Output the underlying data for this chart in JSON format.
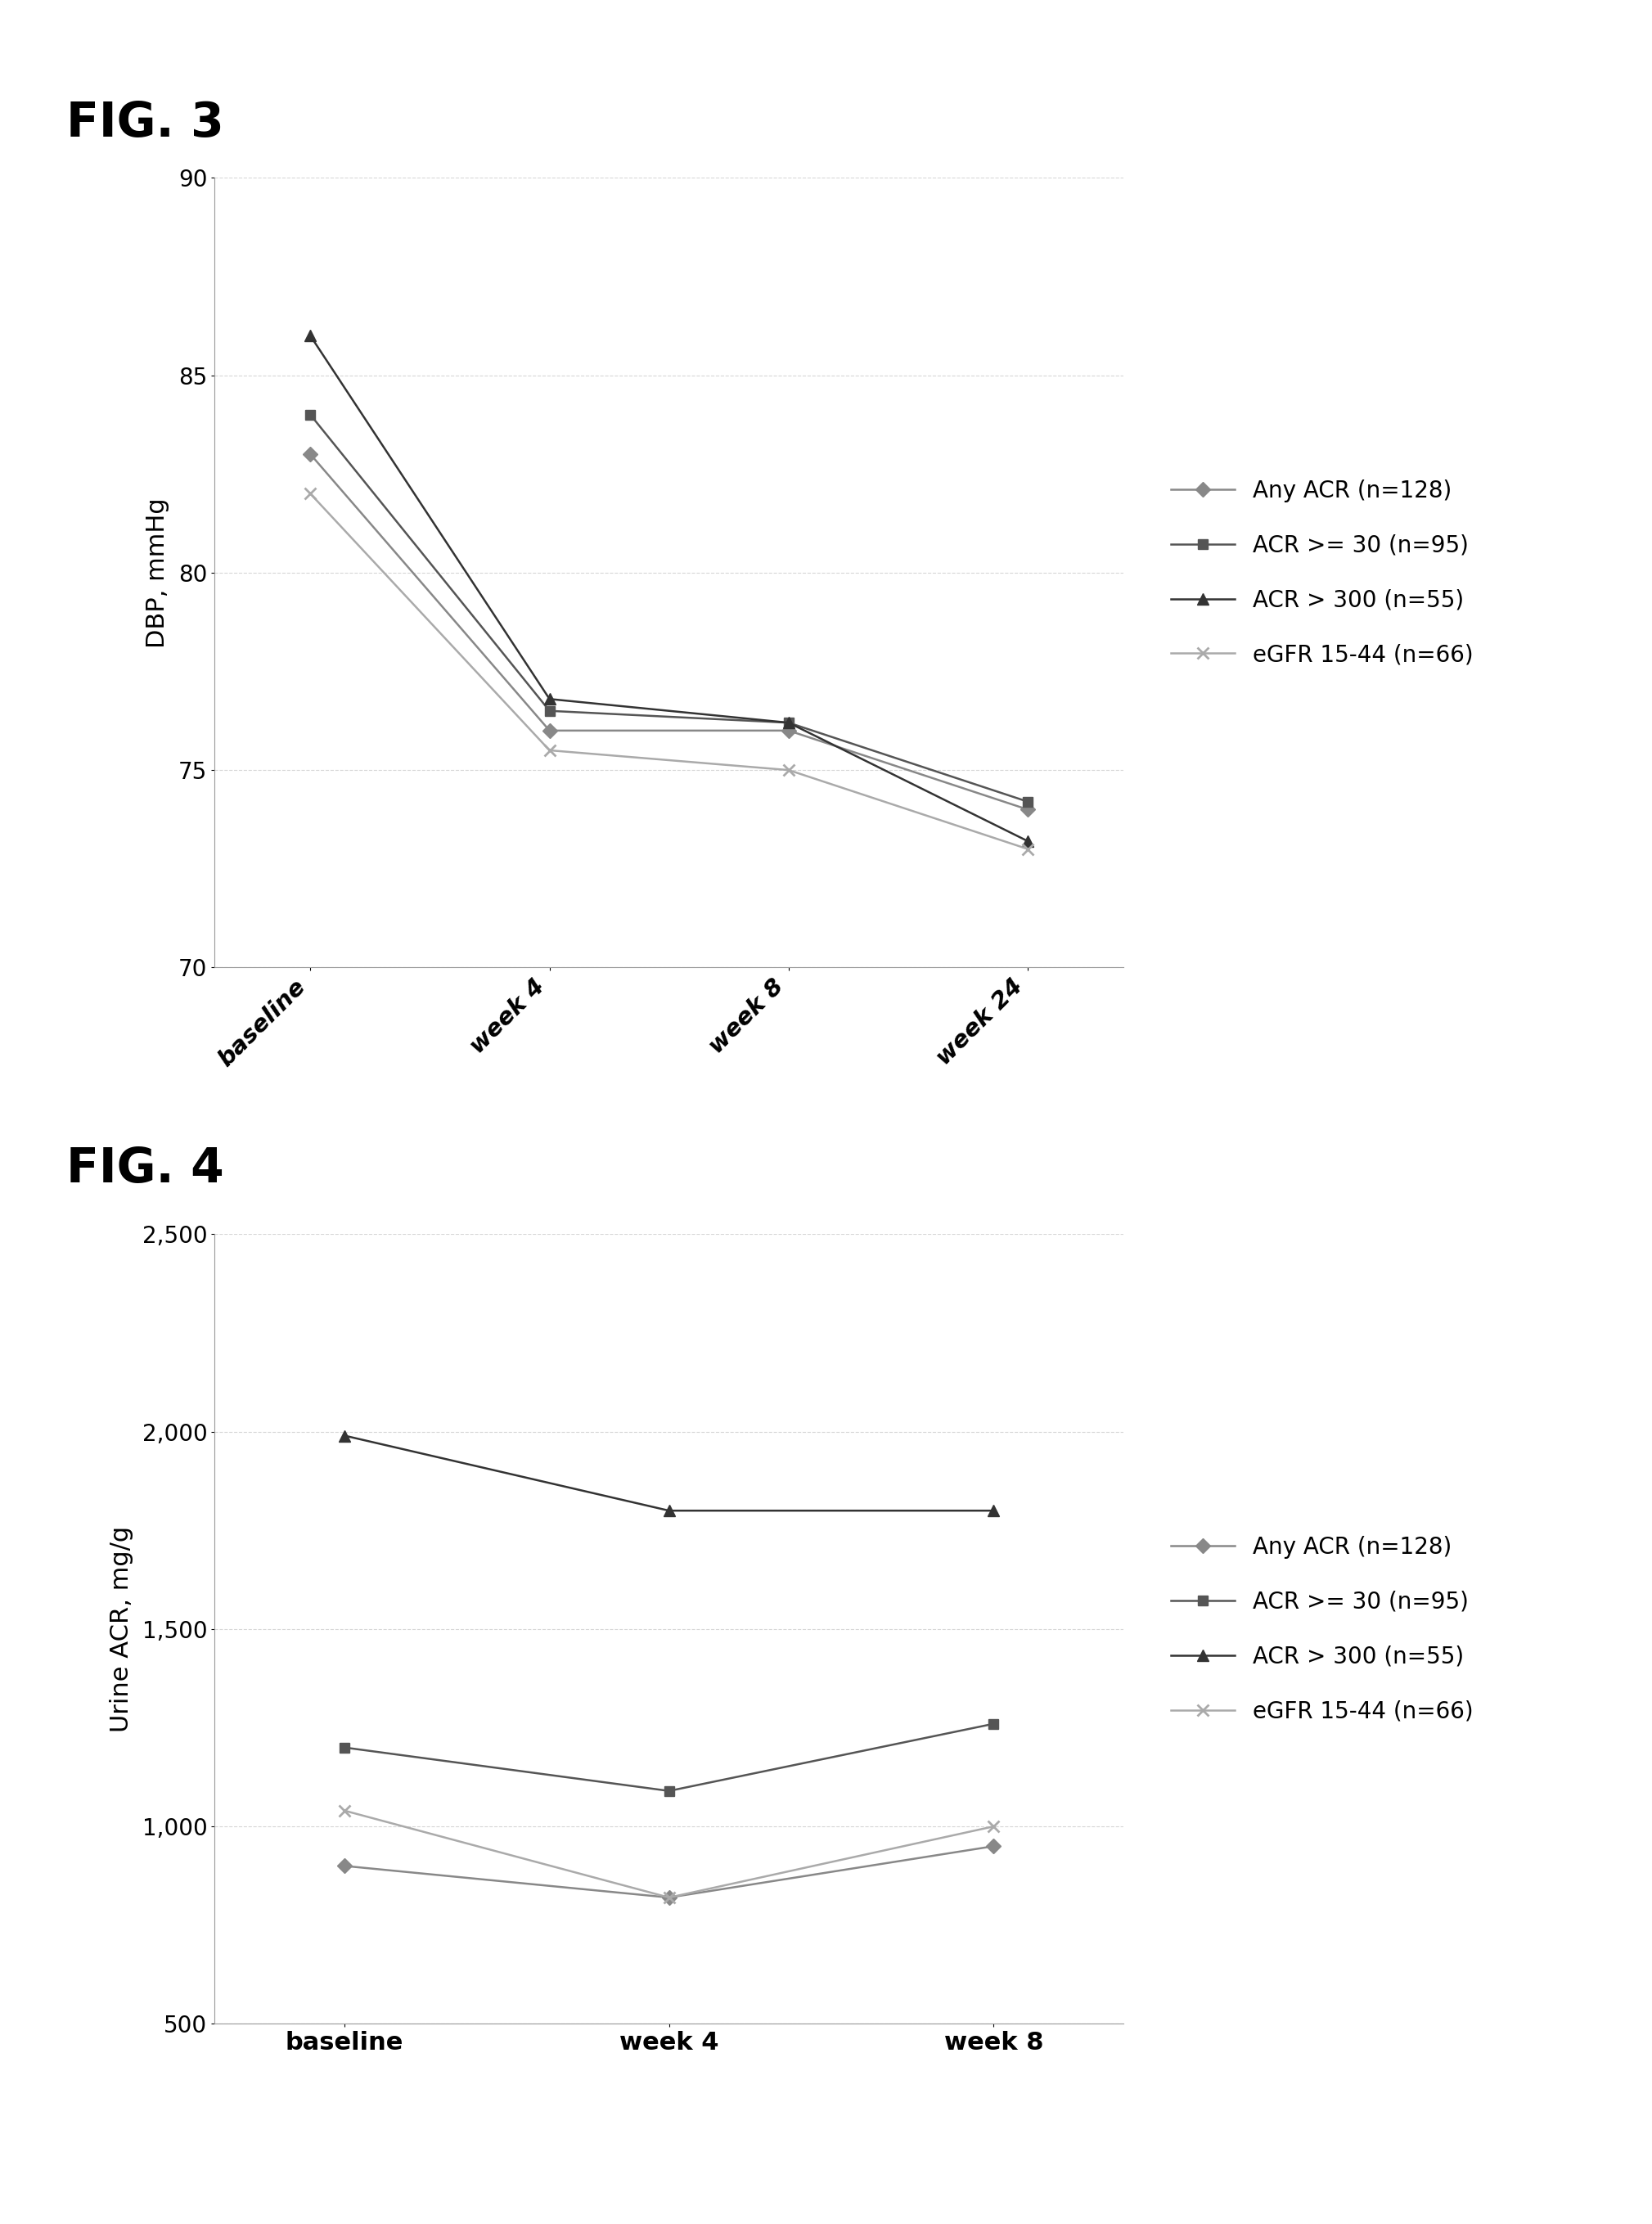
{
  "fig3": {
    "title": "FIG. 3",
    "ylabel": "DBP, mmHg",
    "xlabels": [
      "baseline",
      "week 4",
      "week 8",
      "week 24"
    ],
    "ylim": [
      70,
      90
    ],
    "yticks": [
      70,
      75,
      80,
      85,
      90
    ],
    "series": [
      {
        "label": "Any ACR (n=128)",
        "values": [
          83.0,
          76.0,
          76.0,
          74.0
        ],
        "color": "#888888",
        "marker": "D",
        "markersize": 9
      },
      {
        "label": "ACR >= 30 (n=95)",
        "values": [
          84.0,
          76.5,
          76.2,
          74.2
        ],
        "color": "#555555",
        "marker": "s",
        "markersize": 9
      },
      {
        "label": "ACR > 300 (n=55)",
        "values": [
          86.0,
          76.8,
          76.2,
          73.2
        ],
        "color": "#333333",
        "marker": "^",
        "markersize": 10
      },
      {
        "label": "eGFR 15-44 (n=66)",
        "values": [
          82.0,
          75.5,
          75.0,
          73.0
        ],
        "color": "#aaaaaa",
        "marker": "x",
        "markersize": 10,
        "markeredgewidth": 2
      }
    ]
  },
  "fig4": {
    "title": "FIG. 4",
    "ylabel": "Urine ACR, mg/g",
    "xlabels": [
      "baseline",
      "week 4",
      "week 8"
    ],
    "ylim": [
      500,
      2500
    ],
    "yticks": [
      500,
      1000,
      1500,
      2000,
      2500
    ],
    "ytick_labels": [
      "500",
      "1,000",
      "1,500",
      "2,000",
      "2,500"
    ],
    "series": [
      {
        "label": "Any ACR (n=128)",
        "values": [
          900,
          820,
          950
        ],
        "color": "#888888",
        "marker": "D",
        "markersize": 9
      },
      {
        "label": "ACR >= 30 (n=95)",
        "values": [
          1200,
          1090,
          1260
        ],
        "color": "#555555",
        "marker": "s",
        "markersize": 9
      },
      {
        "label": "ACR > 300 (n=55)",
        "values": [
          1990,
          1800,
          1800
        ],
        "color": "#333333",
        "marker": "^",
        "markersize": 10
      },
      {
        "label": "eGFR 15-44 (n=66)",
        "values": [
          1040,
          820,
          1000
        ],
        "color": "#aaaaaa",
        "marker": "x",
        "markersize": 10,
        "markeredgewidth": 2
      }
    ]
  },
  "background_color": "#ffffff",
  "grid_color": "#bbbbbb",
  "grid_style": "--",
  "grid_alpha": 0.6,
  "line_width": 1.8,
  "fig_title_fontsize": 42,
  "axis_label_fontsize": 22,
  "tick_label_fontsize": 20,
  "legend_fontsize": 20,
  "xtick_label_fontsize_fig3": 21,
  "xtick_label_fontsize_fig4": 22
}
